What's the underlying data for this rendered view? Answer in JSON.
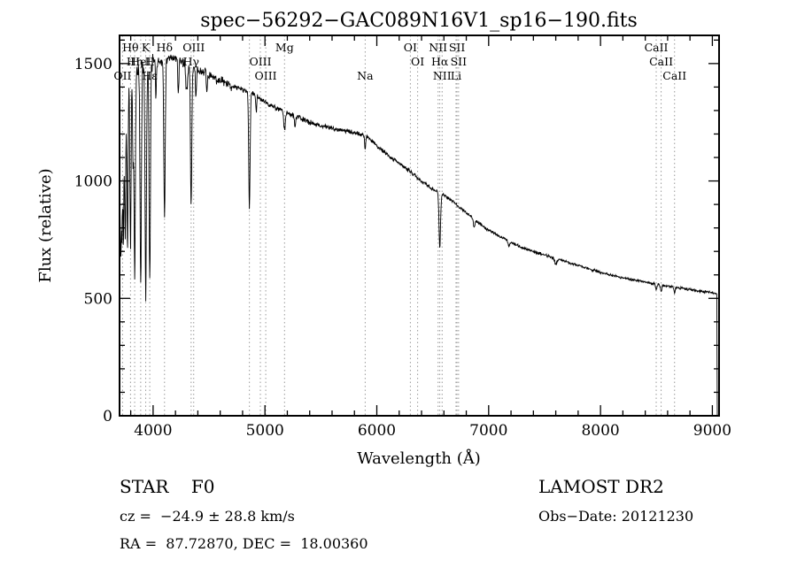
{
  "title": "spec−56292−GAC089N16V1_sp16−190.fits",
  "axes": {
    "xlabel": "Wavelength (Å)",
    "ylabel": "Flux (relative)",
    "x_ticks": [
      4000,
      5000,
      6000,
      7000,
      8000,
      9000
    ],
    "x_minor_step": 200,
    "y_ticks": [
      0,
      500,
      1000,
      1500
    ],
    "y_minor_step": 100
  },
  "footer": {
    "class_label": "STAR    F0",
    "survey": "LAMOST DR2",
    "cz": "cz =  −24.9 ± 28.8 km/s",
    "obs_date": "Obs−Date: 20121230",
    "radec": "RA =  87.72870, DEC =  18.00360"
  },
  "chart_data": {
    "type": "line",
    "title": "spec−56292−GAC089N16V1_sp16−190.fits",
    "xlabel": "Wavelength (Å)",
    "ylabel": "Flux (relative)",
    "xlim": [
      3700,
      9060
    ],
    "ylim": [
      0,
      1620
    ],
    "series_name": "flux",
    "line_color": "#000000",
    "marker_line_color": "#9a9a9a",
    "continuum": [
      [
        3700,
        850
      ],
      [
        3715,
        1050
      ],
      [
        3730,
        1200
      ],
      [
        3750,
        1310
      ],
      [
        3775,
        1380
      ],
      [
        3800,
        1430
      ],
      [
        3850,
        1465
      ],
      [
        3900,
        1490
      ],
      [
        3960,
        1500
      ],
      [
        4000,
        1505
      ],
      [
        4100,
        1515
      ],
      [
        4200,
        1520
      ],
      [
        4300,
        1500
      ],
      [
        4400,
        1470
      ],
      [
        4500,
        1450
      ],
      [
        4600,
        1425
      ],
      [
        4700,
        1405
      ],
      [
        4800,
        1390
      ],
      [
        4900,
        1370
      ],
      [
        5000,
        1335
      ],
      [
        5100,
        1310
      ],
      [
        5200,
        1290
      ],
      [
        5300,
        1270
      ],
      [
        5400,
        1250
      ],
      [
        5500,
        1235
      ],
      [
        5600,
        1225
      ],
      [
        5700,
        1215
      ],
      [
        5800,
        1205
      ],
      [
        5900,
        1195
      ],
      [
        6000,
        1150
      ],
      [
        6100,
        1110
      ],
      [
        6200,
        1075
      ],
      [
        6300,
        1040
      ],
      [
        6400,
        1000
      ],
      [
        6500,
        965
      ],
      [
        6600,
        940
      ],
      [
        6700,
        905
      ],
      [
        6800,
        865
      ],
      [
        6900,
        825
      ],
      [
        7000,
        790
      ],
      [
        7100,
        765
      ],
      [
        7200,
        740
      ],
      [
        7300,
        715
      ],
      [
        7400,
        700
      ],
      [
        7500,
        685
      ],
      [
        7600,
        670
      ],
      [
        7700,
        655
      ],
      [
        7800,
        640
      ],
      [
        7900,
        625
      ],
      [
        8000,
        610
      ],
      [
        8100,
        598
      ],
      [
        8200,
        588
      ],
      [
        8300,
        578
      ],
      [
        8400,
        570
      ],
      [
        8500,
        560
      ],
      [
        8600,
        552
      ],
      [
        8700,
        545
      ],
      [
        8800,
        538
      ],
      [
        8900,
        530
      ],
      [
        9000,
        524
      ],
      [
        9040,
        520
      ]
    ],
    "absorption_lines": [
      {
        "c": 3712,
        "d": 0.35,
        "w": 4
      },
      {
        "c": 3722,
        "d": 0.3,
        "w": 4
      },
      {
        "c": 3734,
        "d": 0.38,
        "w": 4
      },
      {
        "c": 3750,
        "d": 0.42,
        "w": 5
      },
      {
        "c": 3771,
        "d": 0.46,
        "w": 5
      },
      {
        "c": 3798,
        "d": 0.5,
        "w": 5
      },
      {
        "c": 3820,
        "d": 0.25,
        "w": 4
      },
      {
        "c": 3835,
        "d": 0.6,
        "w": 6
      },
      {
        "c": 3889,
        "d": 0.62,
        "w": 6
      },
      {
        "c": 3934,
        "d": 0.66,
        "w": 6
      },
      {
        "c": 3970,
        "d": 0.62,
        "w": 6
      },
      {
        "c": 4026,
        "d": 0.1,
        "w": 4
      },
      {
        "c": 4102,
        "d": 0.45,
        "w": 6
      },
      {
        "c": 4226,
        "d": 0.1,
        "w": 4
      },
      {
        "c": 4300,
        "d": 0.08,
        "w": 8
      },
      {
        "c": 4340,
        "d": 0.4,
        "w": 6
      },
      {
        "c": 4383,
        "d": 0.08,
        "w": 4
      },
      {
        "c": 4481,
        "d": 0.06,
        "w": 4
      },
      {
        "c": 4861,
        "d": 0.36,
        "w": 6
      },
      {
        "c": 4922,
        "d": 0.05,
        "w": 4
      },
      {
        "c": 5175,
        "d": 0.06,
        "w": 7
      },
      {
        "c": 5270,
        "d": 0.04,
        "w": 5
      },
      {
        "c": 5896,
        "d": 0.05,
        "w": 5
      },
      {
        "c": 6563,
        "d": 0.24,
        "w": 7
      },
      {
        "c": 6870,
        "d": 0.04,
        "w": 8
      },
      {
        "c": 7180,
        "d": 0.03,
        "w": 8
      },
      {
        "c": 7600,
        "d": 0.04,
        "w": 9
      },
      {
        "c": 8498,
        "d": 0.04,
        "w": 6
      },
      {
        "c": 8542,
        "d": 0.05,
        "w": 6
      },
      {
        "c": 8662,
        "d": 0.04,
        "w": 6
      }
    ],
    "edge_drop": {
      "wavelength": 9044,
      "flux_to": 0
    },
    "marker_wavelengths": [
      3727,
      3798,
      3835,
      3889,
      3934,
      3970,
      4102,
      4340,
      4363,
      4861,
      4959,
      5007,
      5175,
      5896,
      6300,
      6365,
      6548,
      6563,
      6584,
      6708,
      6717,
      6731,
      8498,
      8542,
      8662
    ],
    "line_markers": [
      {
        "label": "Hθ",
        "wl": 3798,
        "row": 1
      },
      {
        "label": "K",
        "wl": 3934,
        "row": 1
      },
      {
        "label": "Hδ",
        "wl": 4102,
        "row": 1
      },
      {
        "label": "OIII",
        "wl": 4363,
        "row": 1
      },
      {
        "label": "Mg",
        "wl": 5175,
        "row": 1
      },
      {
        "label": "OI",
        "wl": 6300,
        "row": 1
      },
      {
        "label": "NII",
        "wl": 6548,
        "row": 1
      },
      {
        "label": "SII",
        "wl": 6717,
        "row": 1
      },
      {
        "label": "CaII",
        "wl": 8498,
        "row": 1
      },
      {
        "label": "Hη",
        "wl": 3835,
        "row": 2
      },
      {
        "label": "HeI",
        "wl": 3889,
        "row": 2
      },
      {
        "label": "H",
        "wl": 3970,
        "row": 2
      },
      {
        "label": "Hγ",
        "wl": 4340,
        "row": 2
      },
      {
        "label": "OIII",
        "wl": 4959,
        "row": 2
      },
      {
        "label": "OI",
        "wl": 6365,
        "row": 2
      },
      {
        "label": "Hα",
        "wl": 6563,
        "row": 2
      },
      {
        "label": "SII",
        "wl": 6731,
        "row": 2
      },
      {
        "label": "CaII",
        "wl": 8542,
        "row": 2
      },
      {
        "label": "OII",
        "wl": 3727,
        "row": 3
      },
      {
        "label": "Hε",
        "wl": 3970,
        "row": 3
      },
      {
        "label": "OIII",
        "wl": 5007,
        "row": 3
      },
      {
        "label": "Na",
        "wl": 5896,
        "row": 3
      },
      {
        "label": "NII",
        "wl": 6584,
        "row": 3
      },
      {
        "label": "Li",
        "wl": 6708,
        "row": 3
      },
      {
        "label": "CaII",
        "wl": 8662,
        "row": 3
      }
    ],
    "noise_seed": 42
  }
}
